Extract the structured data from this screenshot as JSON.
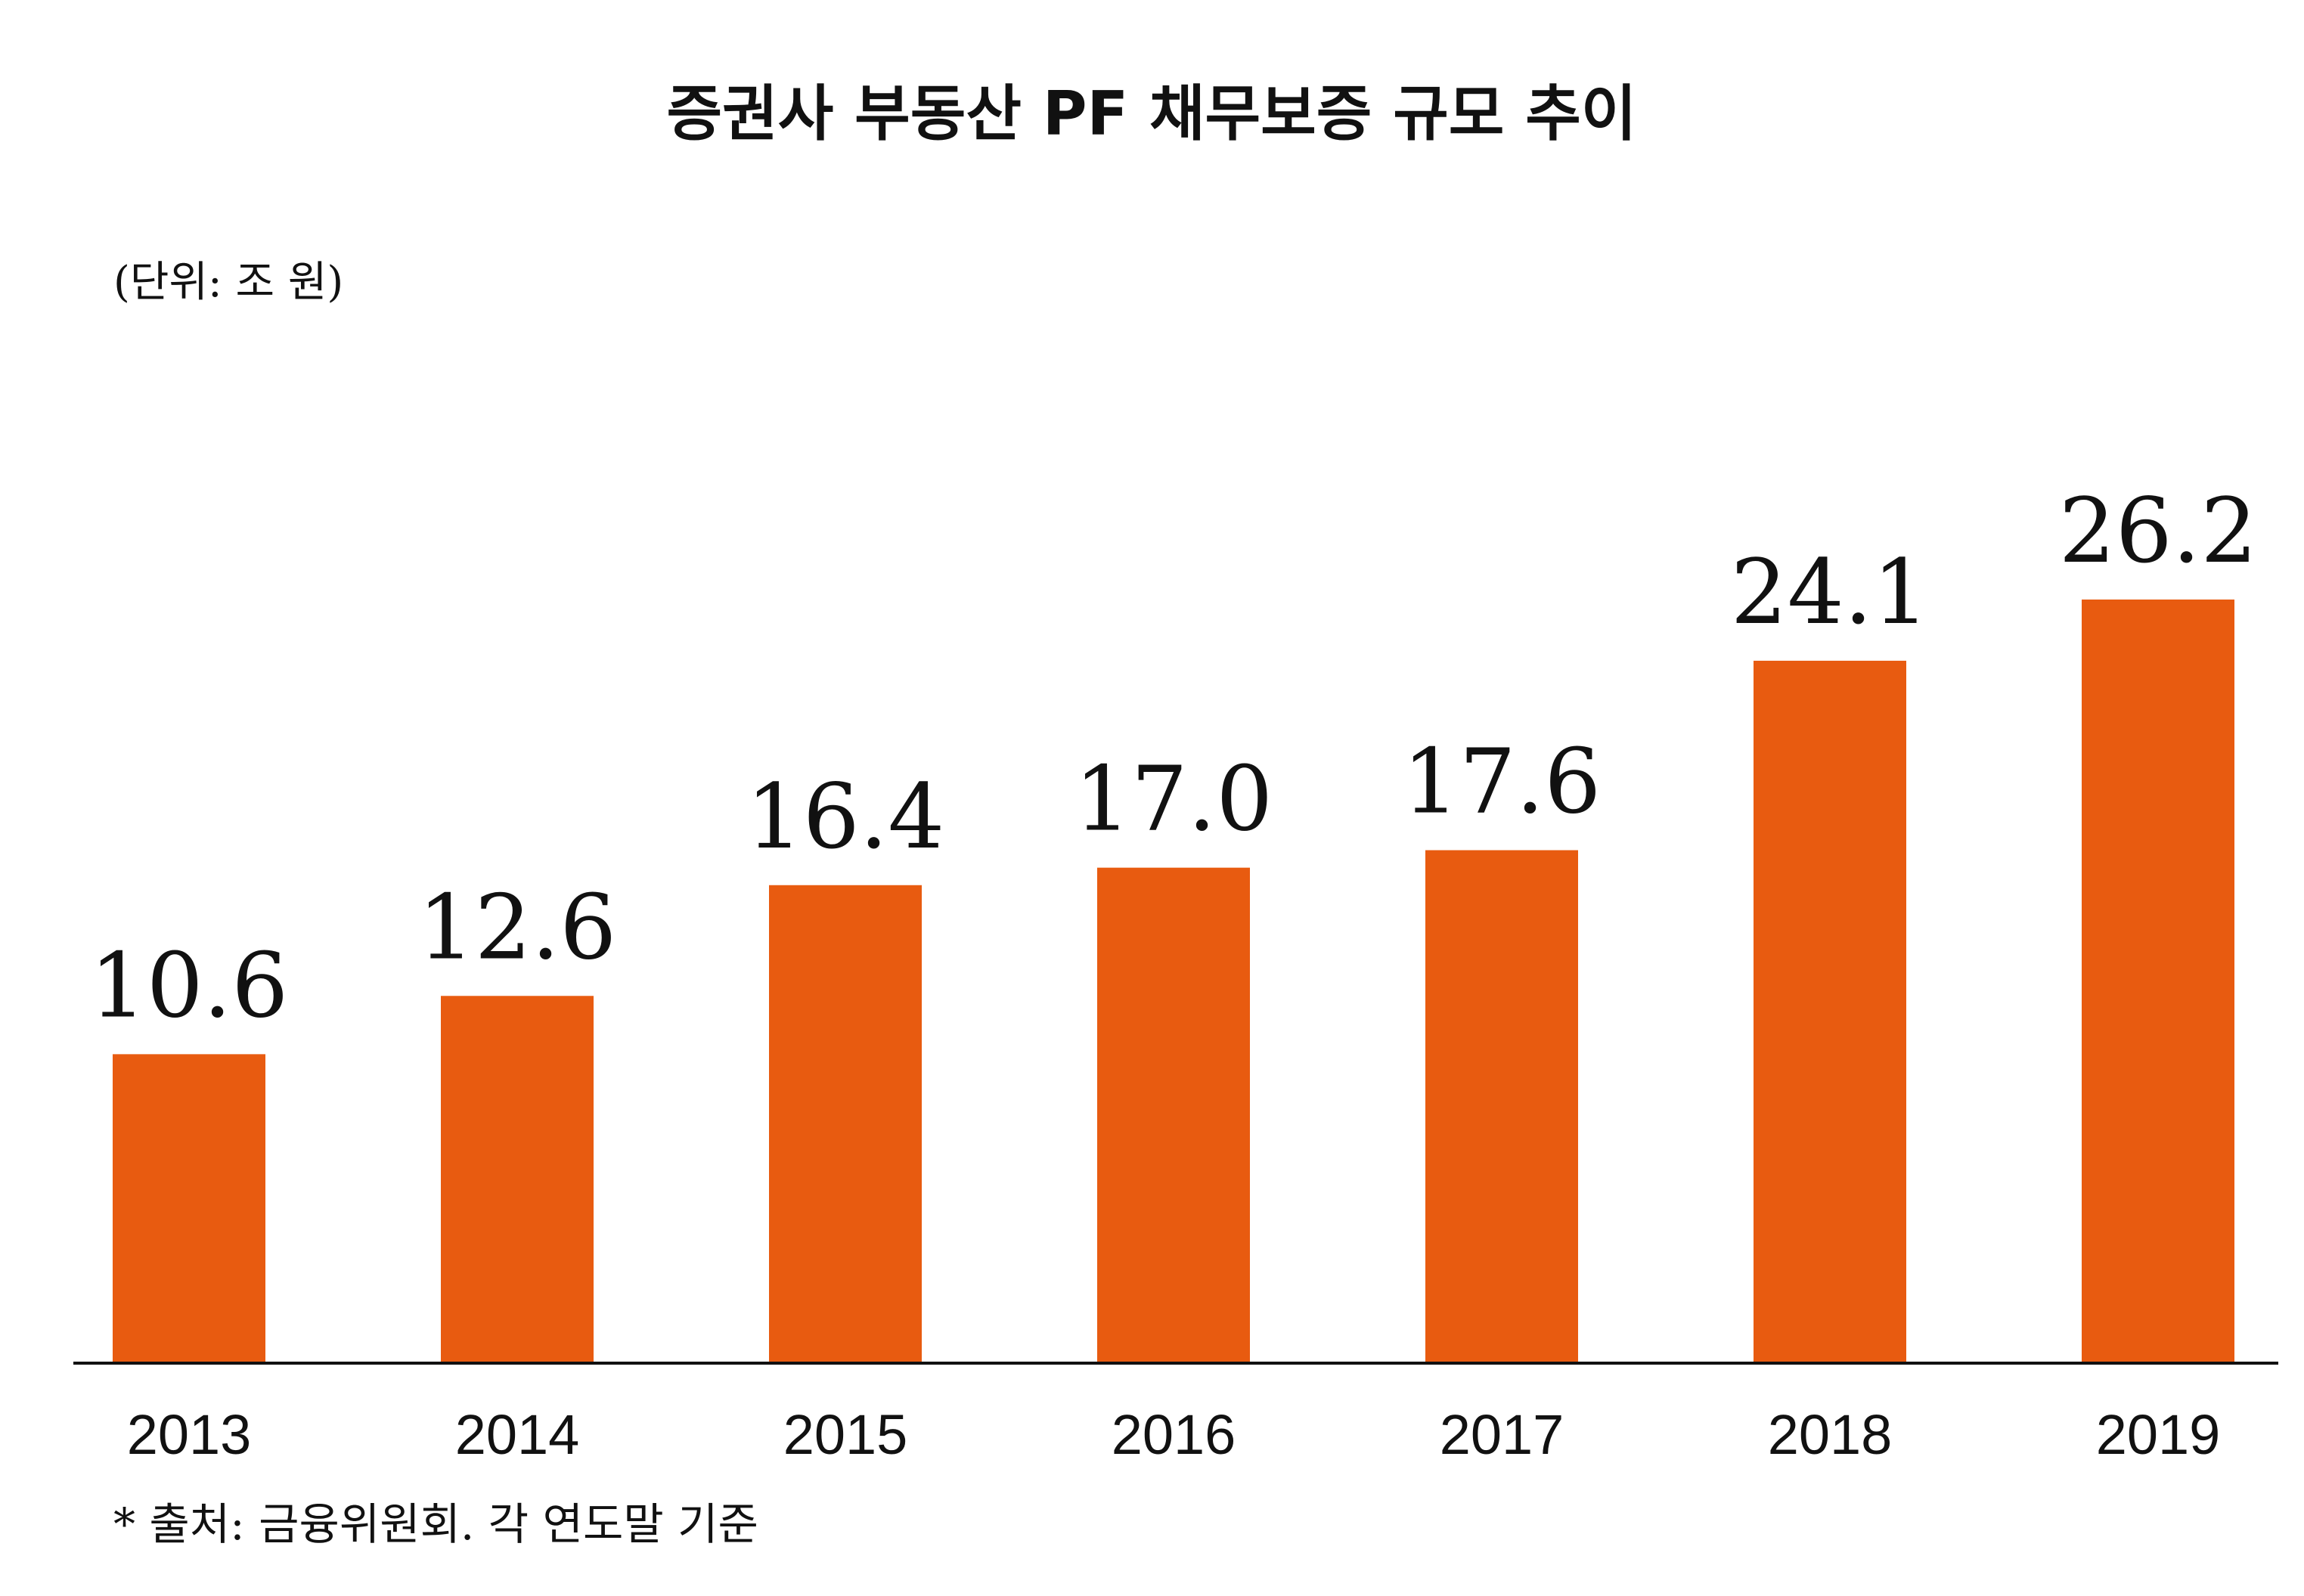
{
  "chart_data": {
    "type": "bar",
    "title": "증권사 부동산 PF 채무보증 규모 추이",
    "unit_label": "(단위: 조 원)",
    "source_note": "* 출처: 금융위원회. 각 연도말 기준",
    "categories": [
      "2013",
      "2014",
      "2015",
      "2016",
      "2017",
      "2018",
      "2019"
    ],
    "values": [
      10.6,
      12.6,
      16.4,
      17.0,
      17.6,
      24.1,
      26.2
    ],
    "value_labels": [
      "10.6",
      "12.6",
      "16.4",
      "17.0",
      "17.6",
      "24.1",
      "26.2"
    ],
    "xlabel": "",
    "ylabel": "",
    "ylim": [
      0,
      32
    ],
    "grid": false,
    "bar_color": "#E85B10",
    "axis_color": "#111111"
  }
}
